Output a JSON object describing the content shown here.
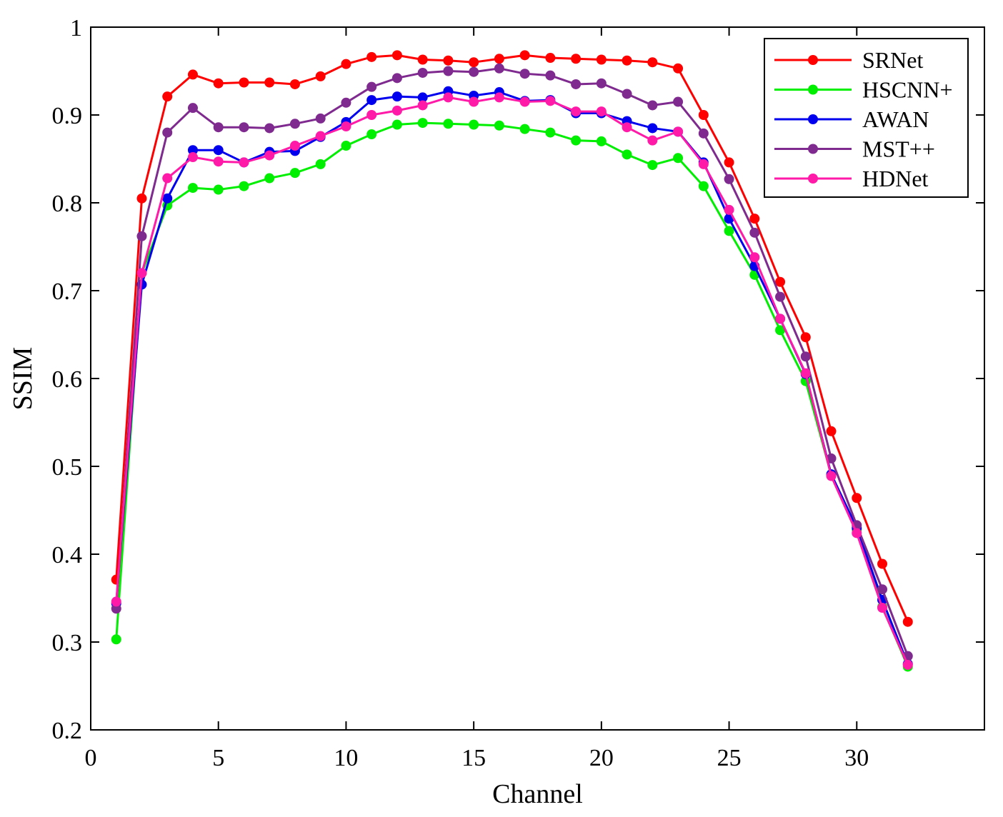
{
  "chart_data": {
    "type": "line",
    "title": "",
    "xlabel": "Channel",
    "ylabel": "SSIM",
    "xlim": [
      0,
      35
    ],
    "ylim": [
      0.2,
      1.0
    ],
    "xticks": [
      0,
      5,
      10,
      15,
      20,
      25,
      30
    ],
    "xtick_labels": [
      "0",
      "5",
      "10",
      "15",
      "20",
      "25",
      "30"
    ],
    "yticks": [
      0.2,
      0.3,
      0.4,
      0.5,
      0.6,
      0.7,
      0.8,
      0.9,
      1.0
    ],
    "ytick_labels": [
      "0.2",
      "0.3",
      "0.4",
      "0.5",
      "0.6",
      "0.7",
      "0.8",
      "0.9",
      "1"
    ],
    "grid": false,
    "legend_position": "top-right",
    "x": [
      1,
      2,
      3,
      4,
      5,
      6,
      7,
      8,
      9,
      10,
      11,
      12,
      13,
      14,
      15,
      16,
      17,
      18,
      19,
      20,
      21,
      22,
      23,
      24,
      25,
      26,
      27,
      28,
      29,
      30,
      31,
      32
    ],
    "series": [
      {
        "name": "SRNet",
        "color": "#ff0000",
        "values": [
          0.371,
          0.805,
          0.921,
          0.946,
          0.936,
          0.937,
          0.937,
          0.935,
          0.944,
          0.958,
          0.966,
          0.968,
          0.963,
          0.962,
          0.96,
          0.964,
          0.968,
          0.965,
          0.964,
          0.963,
          0.962,
          0.96,
          0.953,
          0.9,
          0.846,
          0.782,
          0.71,
          0.647,
          0.54,
          0.464,
          0.389,
          0.323
        ]
      },
      {
        "name": "HSCNN+",
        "color": "#00ee00",
        "values": [
          0.303,
          0.72,
          0.797,
          0.817,
          0.815,
          0.819,
          0.828,
          0.834,
          0.844,
          0.865,
          0.878,
          0.889,
          0.891,
          0.89,
          0.889,
          0.888,
          0.884,
          0.88,
          0.871,
          0.87,
          0.855,
          0.843,
          0.851,
          0.819,
          0.768,
          0.718,
          0.655,
          0.597,
          0.49,
          0.428,
          0.34,
          0.272
        ]
      },
      {
        "name": "AWAN",
        "color": "#0000ee",
        "values": [
          0.344,
          0.707,
          0.805,
          0.86,
          0.86,
          0.846,
          0.858,
          0.859,
          0.875,
          0.892,
          0.917,
          0.921,
          0.92,
          0.927,
          0.922,
          0.926,
          0.916,
          0.917,
          0.902,
          0.902,
          0.893,
          0.885,
          0.881,
          0.846,
          0.782,
          0.728,
          0.668,
          0.605,
          0.491,
          0.43,
          0.348,
          0.275
        ]
      },
      {
        "name": "MST++",
        "color": "#7f2a8f",
        "values": [
          0.338,
          0.762,
          0.88,
          0.908,
          0.886,
          0.886,
          0.885,
          0.89,
          0.896,
          0.914,
          0.932,
          0.942,
          0.948,
          0.95,
          0.949,
          0.953,
          0.947,
          0.945,
          0.935,
          0.936,
          0.924,
          0.911,
          0.915,
          0.879,
          0.827,
          0.766,
          0.693,
          0.625,
          0.509,
          0.433,
          0.36,
          0.284
        ]
      },
      {
        "name": "HDNet",
        "color": "#ff1aa8",
        "values": [
          0.346,
          0.72,
          0.828,
          0.852,
          0.847,
          0.846,
          0.854,
          0.865,
          0.876,
          0.887,
          0.9,
          0.905,
          0.911,
          0.92,
          0.915,
          0.92,
          0.915,
          0.916,
          0.904,
          0.904,
          0.886,
          0.871,
          0.881,
          0.844,
          0.792,
          0.738,
          0.668,
          0.606,
          0.489,
          0.424,
          0.339,
          0.274
        ]
      }
    ]
  }
}
